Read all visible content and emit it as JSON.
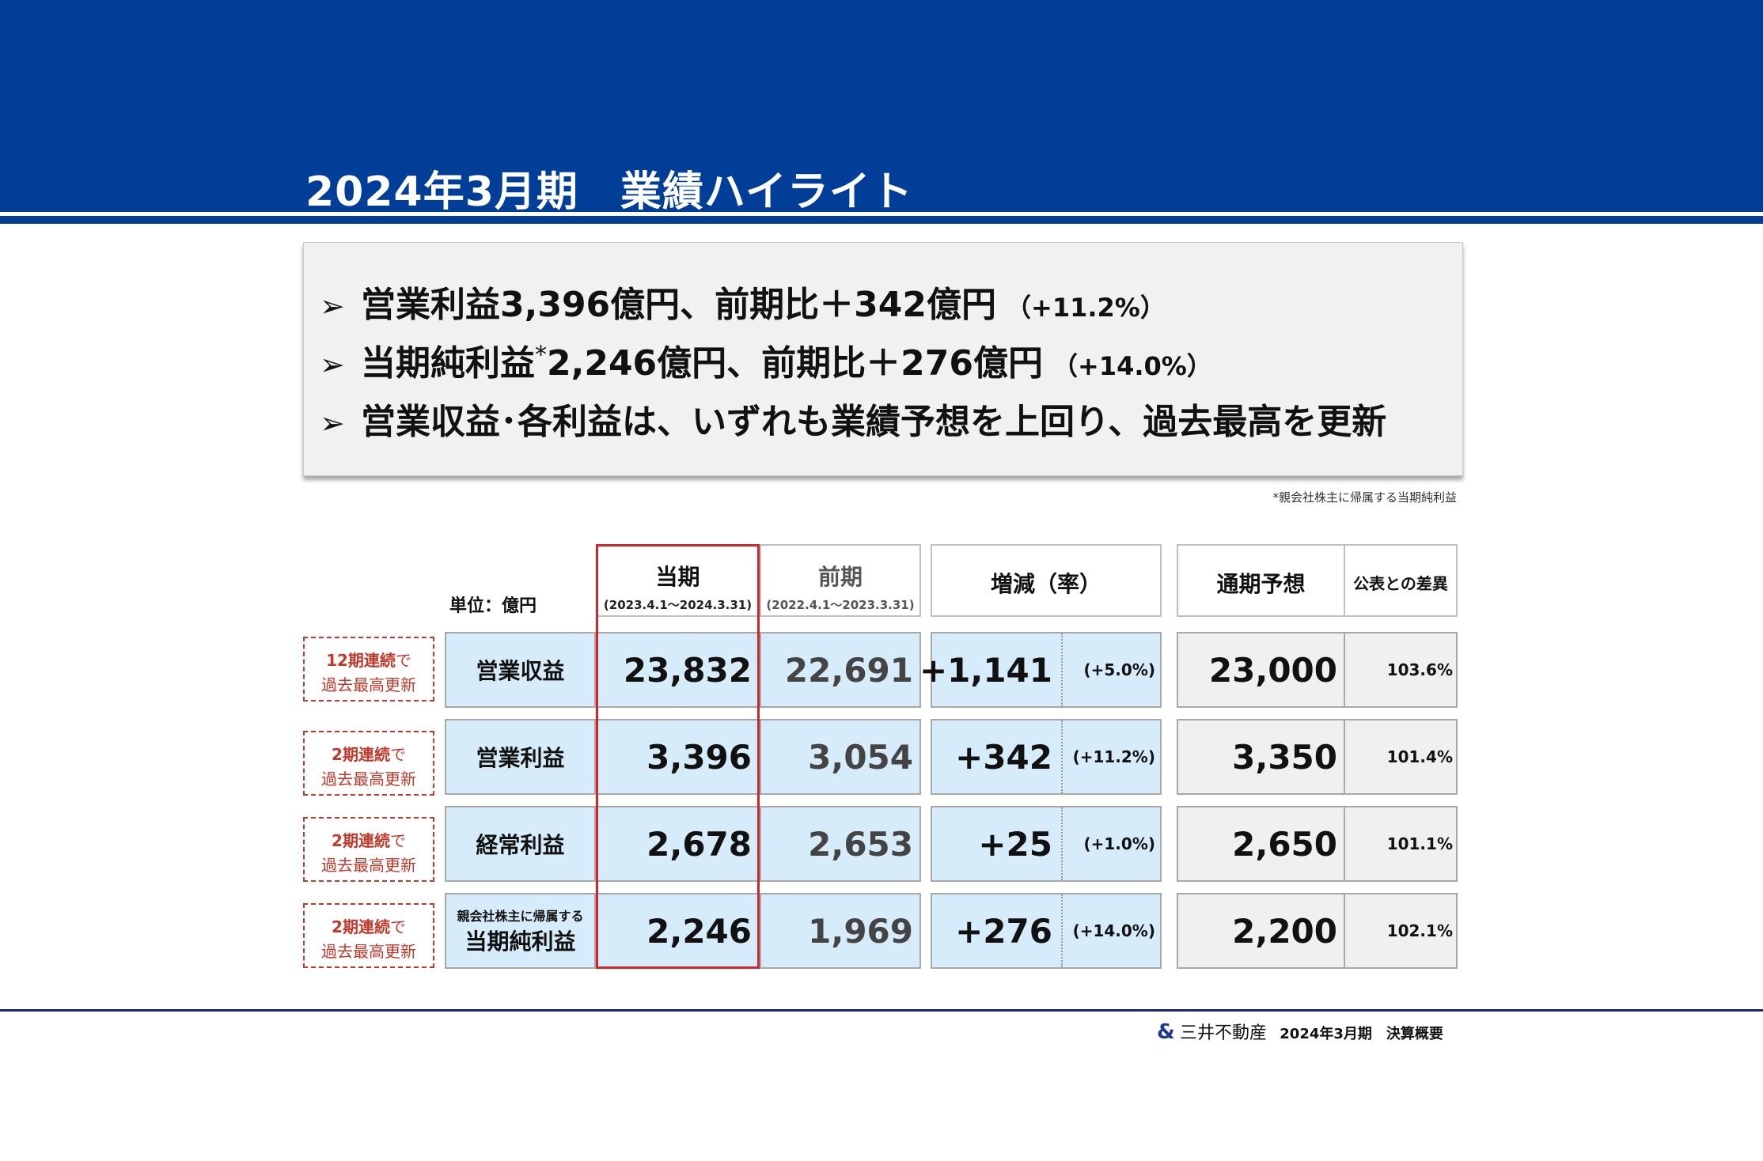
{
  "header": {
    "title": "2024年3月期　業績ハイライト"
  },
  "summary": {
    "items": [
      {
        "text": "営業利益3,396億円、前期比＋342億円",
        "star": "",
        "rest": "",
        "sub": "（+11.2%）"
      },
      {
        "text": "当期純利益",
        "star": "*",
        "rest": "2,246億円、前期比＋276億円",
        "sub": "（+14.0%）"
      },
      {
        "text": "営業収益･各利益は、いずれも業績予想を上回り、過去最高を更新",
        "star": "",
        "rest": "",
        "sub": ""
      }
    ],
    "bullet": "➢"
  },
  "footnote": "*親会社株主に帰属する当期純利益",
  "table": {
    "unit": "単位：億円",
    "columns": {
      "current": {
        "label": "当期",
        "period": "(2023.4.1～2024.3.31)"
      },
      "previous": {
        "label": "前期",
        "period": "(2022.4.1～2023.3.31)"
      },
      "change": {
        "label": "増減（率）"
      },
      "forecast": {
        "label": "通期予想"
      },
      "diff": {
        "label": "公表との差異"
      }
    },
    "rows": [
      {
        "badge_bold": "12期連続",
        "badge_suffix": "で",
        "badge_line2": "過去最高更新",
        "label_pre": "",
        "label": "営業収益",
        "current": "23,832",
        "previous": "22,691",
        "change": "+1,141",
        "rate": "(+5.0%)",
        "forecast": "23,000",
        "diff": "103.6%"
      },
      {
        "badge_bold": "2期連続",
        "badge_suffix": "で",
        "badge_line2": "過去最高更新",
        "label_pre": "",
        "label": "営業利益",
        "current": "3,396",
        "previous": "3,054",
        "change": "+342",
        "rate": "(+11.2%)",
        "forecast": "3,350",
        "diff": "101.4%"
      },
      {
        "badge_bold": "2期連続",
        "badge_suffix": "で",
        "badge_line2": "過去最高更新",
        "label_pre": "",
        "label": "経常利益",
        "current": "2,678",
        "previous": "2,653",
        "change": "+25",
        "rate": "(+1.0%)",
        "forecast": "2,650",
        "diff": "101.1%"
      },
      {
        "badge_bold": "2期連続",
        "badge_suffix": "で",
        "badge_line2": "過去最高更新",
        "label_pre": "親会社株主に帰属する",
        "label": "当期純利益",
        "current": "2,246",
        "previous": "1,969",
        "change": "+276",
        "rate": "(+14.0%)",
        "forecast": "2,200",
        "diff": "102.1%"
      }
    ]
  },
  "footer": {
    "logo": "&",
    "company": "三井不動産",
    "doc": "2024年3月期　決算概要"
  },
  "colors": {
    "brand_blue": "#003e98",
    "highlight_red": "#d0262b",
    "cell_blue": "#d6ecfa"
  }
}
